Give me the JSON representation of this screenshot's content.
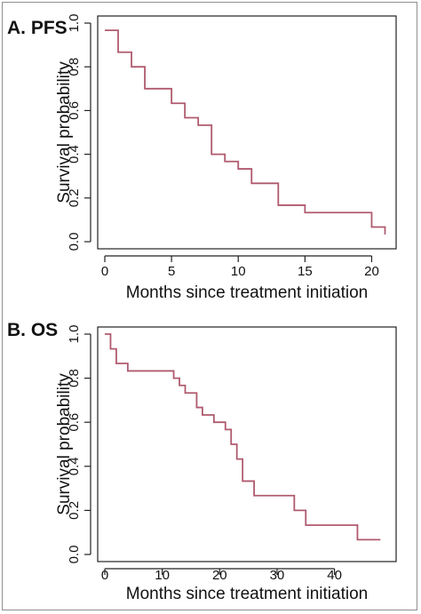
{
  "chart_data": [
    {
      "type": "line",
      "step": true,
      "panel_title": "A. PFS",
      "xlabel": "Months since treatment initiation",
      "ylabel": "Survival probability",
      "xlim": [
        0,
        21.3
      ],
      "ylim": [
        0,
        1.0
      ],
      "xticks": [
        0,
        5,
        10,
        15,
        20
      ],
      "yticks": [
        0.0,
        0.2,
        0.4,
        0.6,
        0.8,
        1.0
      ],
      "ytick_labels": [
        "0.0",
        "0.2",
        "0.4",
        "0.6",
        "0.8",
        "1.0"
      ],
      "color": "#b05a6e",
      "x": [
        0,
        1,
        2,
        3,
        5,
        6,
        7,
        8,
        9,
        10,
        11,
        13,
        15,
        20,
        21
      ],
      "y": [
        0.967,
        0.867,
        0.8,
        0.7,
        0.633,
        0.567,
        0.533,
        0.4,
        0.367,
        0.333,
        0.267,
        0.167,
        0.133,
        0.067,
        0.033
      ]
    },
    {
      "type": "line",
      "step": true,
      "panel_title": "B. OS",
      "xlabel": "Months since treatment initiation",
      "ylabel": "Survival probability",
      "xlim": [
        0,
        49.5
      ],
      "ylim": [
        0,
        1.0
      ],
      "xticks": [
        0,
        10,
        20,
        30,
        40
      ],
      "yticks": [
        0.0,
        0.2,
        0.4,
        0.6,
        0.8,
        1.0
      ],
      "ytick_labels": [
        "0.0",
        "0.2",
        "0.4",
        "0.6",
        "0.8",
        "1.0"
      ],
      "color": "#b05a6e",
      "x": [
        0,
        1,
        2,
        4,
        12,
        13,
        14,
        16,
        17,
        19,
        21,
        22,
        23,
        24,
        26,
        33,
        35,
        44,
        48
      ],
      "y": [
        1.0,
        0.933,
        0.867,
        0.833,
        0.8,
        0.767,
        0.733,
        0.667,
        0.633,
        0.6,
        0.567,
        0.5,
        0.433,
        0.333,
        0.267,
        0.2,
        0.133,
        0.067,
        0.067
      ]
    }
  ]
}
